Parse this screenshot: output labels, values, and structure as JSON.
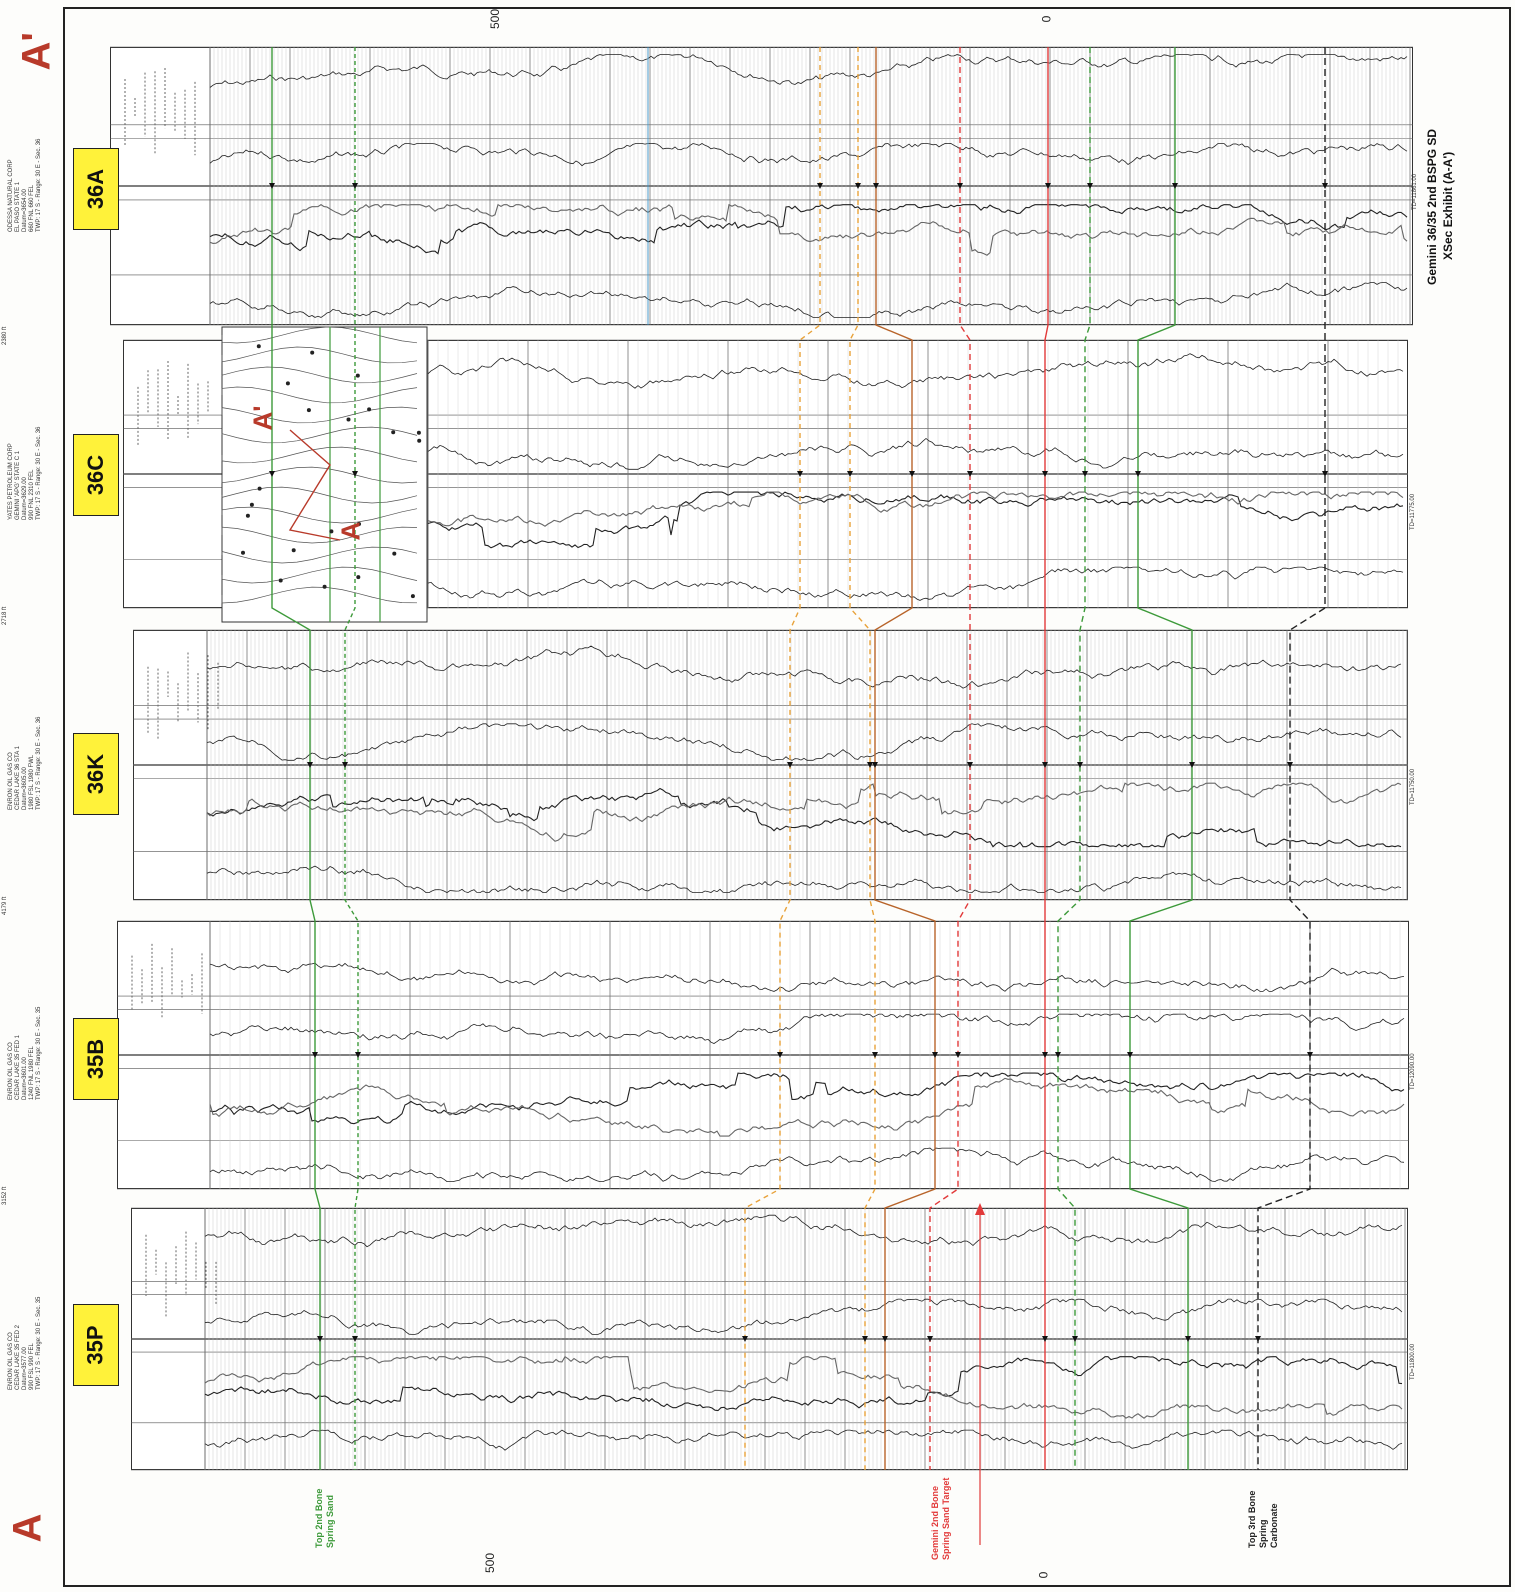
{
  "section_ends": {
    "start": "A",
    "end": "A'"
  },
  "scale_labels": {
    "top_500": "500",
    "top_0": "0",
    "bottom_500": "500",
    "bottom_0": "0"
  },
  "title": {
    "line1": "Gemini 36/35 2nd BSPG SD",
    "line2": "XSec Exhibit (A-A')"
  },
  "wells": [
    {
      "id": "36A",
      "header": "ODESSA NATURAL CORP\nEL PASO STATE 1\nDatum=3654.00\n660 FNL 660 FEL\nTWP: 17 S - Range: 30 E - Sec. 36",
      "td": "TD=11861.00",
      "spacing": "2380 ft"
    },
    {
      "id": "36C",
      "header": "YATES PETROLEUM CORP\nGEMINI 'APG' STATE C 1\nDatum=3629.00\n990 FNL 2310 FEL\nTWP: 17 S - Range: 30 E - Sec. 36",
      "td": "TD=11775.00",
      "spacing": "2718 ft"
    },
    {
      "id": "36K",
      "header": "ENRON OIL GAS CO\nCEDAR LAKE 36 STA 1\nDatum=3605.00\n1980 FSL 1980 FWL\nTWP: 17 S - Range: 30 E - Sec. 36",
      "td": "TD=11750.00",
      "spacing": "4179 ft"
    },
    {
      "id": "35B",
      "header": "ENRON OIL GAS CO\nCEDAR LAKE 35 FED 1\nDatum=3601.00\n1240 FNL 1980 FEL\nTWP: 17 S - Range: 30 E - Sec. 35",
      "td": "TD=12090.00",
      "spacing": "3152 ft"
    },
    {
      "id": "35P",
      "header": "ENRON OIL GAS CO\nCEDAR LAKE 35 FED 2\nDatum=3577.00\n990 FSL 990 FEL\nTWP: 17 S - Range: 30 E - Sec. 35",
      "td": "TD=11800.00",
      "spacing": ""
    }
  ],
  "markers": {
    "top_2nd_bone": "Top 2nd Bone\nSpring Sand",
    "target": "Gemini 2nd Bone\nSpring Sand Target",
    "top_3rd_bone": "Top 3rd Bone\nSpring\nCarbonate"
  },
  "map_labels": {
    "a_prime": "A'",
    "a": "A"
  },
  "colors": {
    "green": "#3d9a3a",
    "orange": "#e8a23a",
    "brown": "#b8642a",
    "red": "#e23a3a",
    "blue": "#4a9ac8",
    "black": "#222222",
    "badge": "#fff23a",
    "end_letter": "#b83a2a"
  }
}
